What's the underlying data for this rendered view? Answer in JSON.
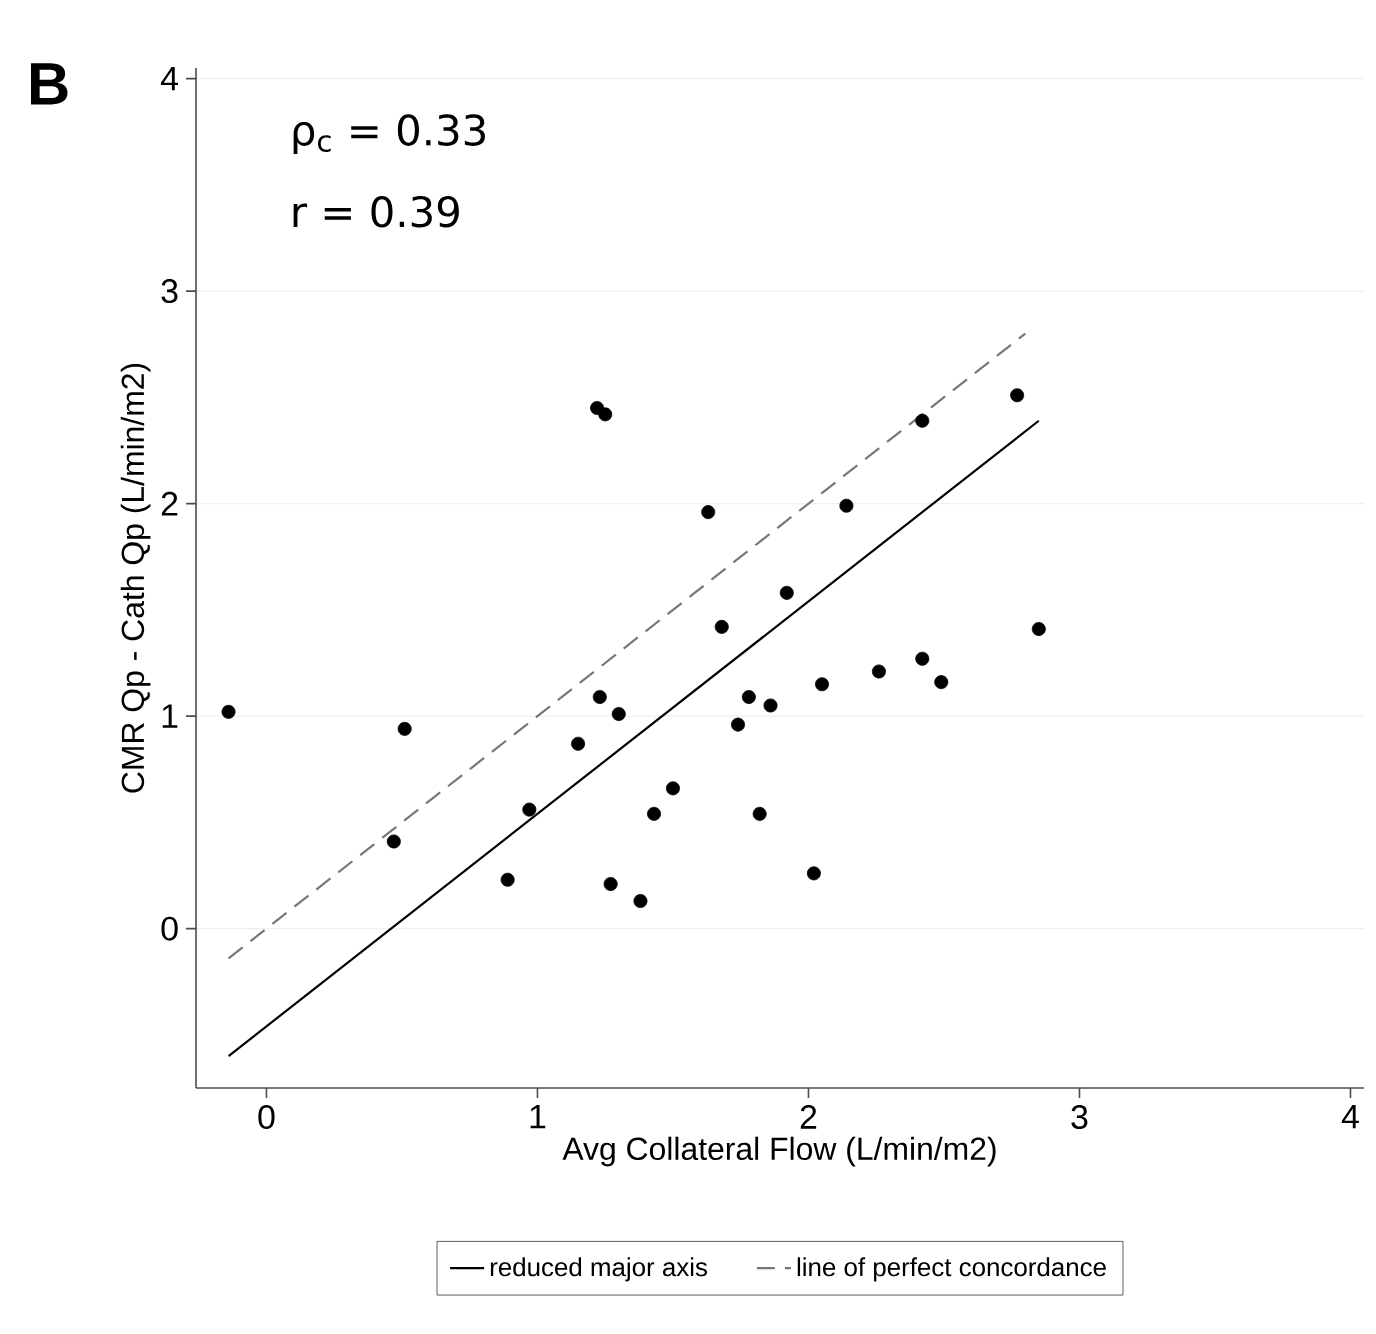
{
  "chart_data": {
    "type": "scatter",
    "xlabel": "Avg Collateral Flow (L/min/m2)",
    "ylabel": "CMR Qp - Cath Qp (L/min/m2)",
    "annotations": [
      "B",
      "ρ$_{c}$ = 0.33",
      "r = 0.39"
    ],
    "xlim": [
      -0.26,
      4.05
    ],
    "ylim": [
      -0.75,
      4.05
    ],
    "xticks": [
      0,
      1,
      2,
      3,
      4
    ],
    "yticks": [
      0,
      1,
      2,
      3,
      4
    ],
    "grid": "y",
    "legend": "bottom",
    "series": [
      {
        "marker": "circle",
        "color": "#000000",
        "x": [
          -0.14,
          0.51,
          0.47,
          0.89,
          0.97,
          1.15,
          1.23,
          1.3,
          1.22,
          1.25,
          1.27,
          1.38,
          1.43,
          1.5,
          1.63,
          1.68,
          1.74,
          1.78,
          1.82,
          1.86,
          1.92,
          2.14,
          2.02,
          2.05,
          2.26,
          2.42,
          2.49,
          2.42,
          2.77,
          2.85
        ],
        "values": [
          1.02,
          0.94,
          0.41,
          0.23,
          0.56,
          0.87,
          1.09,
          1.01,
          2.45,
          2.42,
          0.21,
          0.13,
          0.54,
          0.66,
          1.96,
          1.42,
          0.96,
          1.09,
          0.54,
          1.05,
          1.58,
          1.99,
          0.26,
          1.15,
          1.21,
          1.27,
          1.16,
          2.39,
          2.51,
          1.41
        ]
      },
      {
        "type": "line",
        "name": "reduced major axis",
        "color": "#000000",
        "line_style": "solid",
        "x": [
          -0.14,
          2.85
        ],
        "values": [
          -0.6,
          2.39
        ]
      },
      {
        "type": "line",
        "name": "line of perfect concordance",
        "color": "#777777",
        "line_style": "dashed",
        "x": [
          -0.14,
          2.8
        ],
        "values": [
          -0.14,
          2.8
        ]
      }
    ]
  }
}
